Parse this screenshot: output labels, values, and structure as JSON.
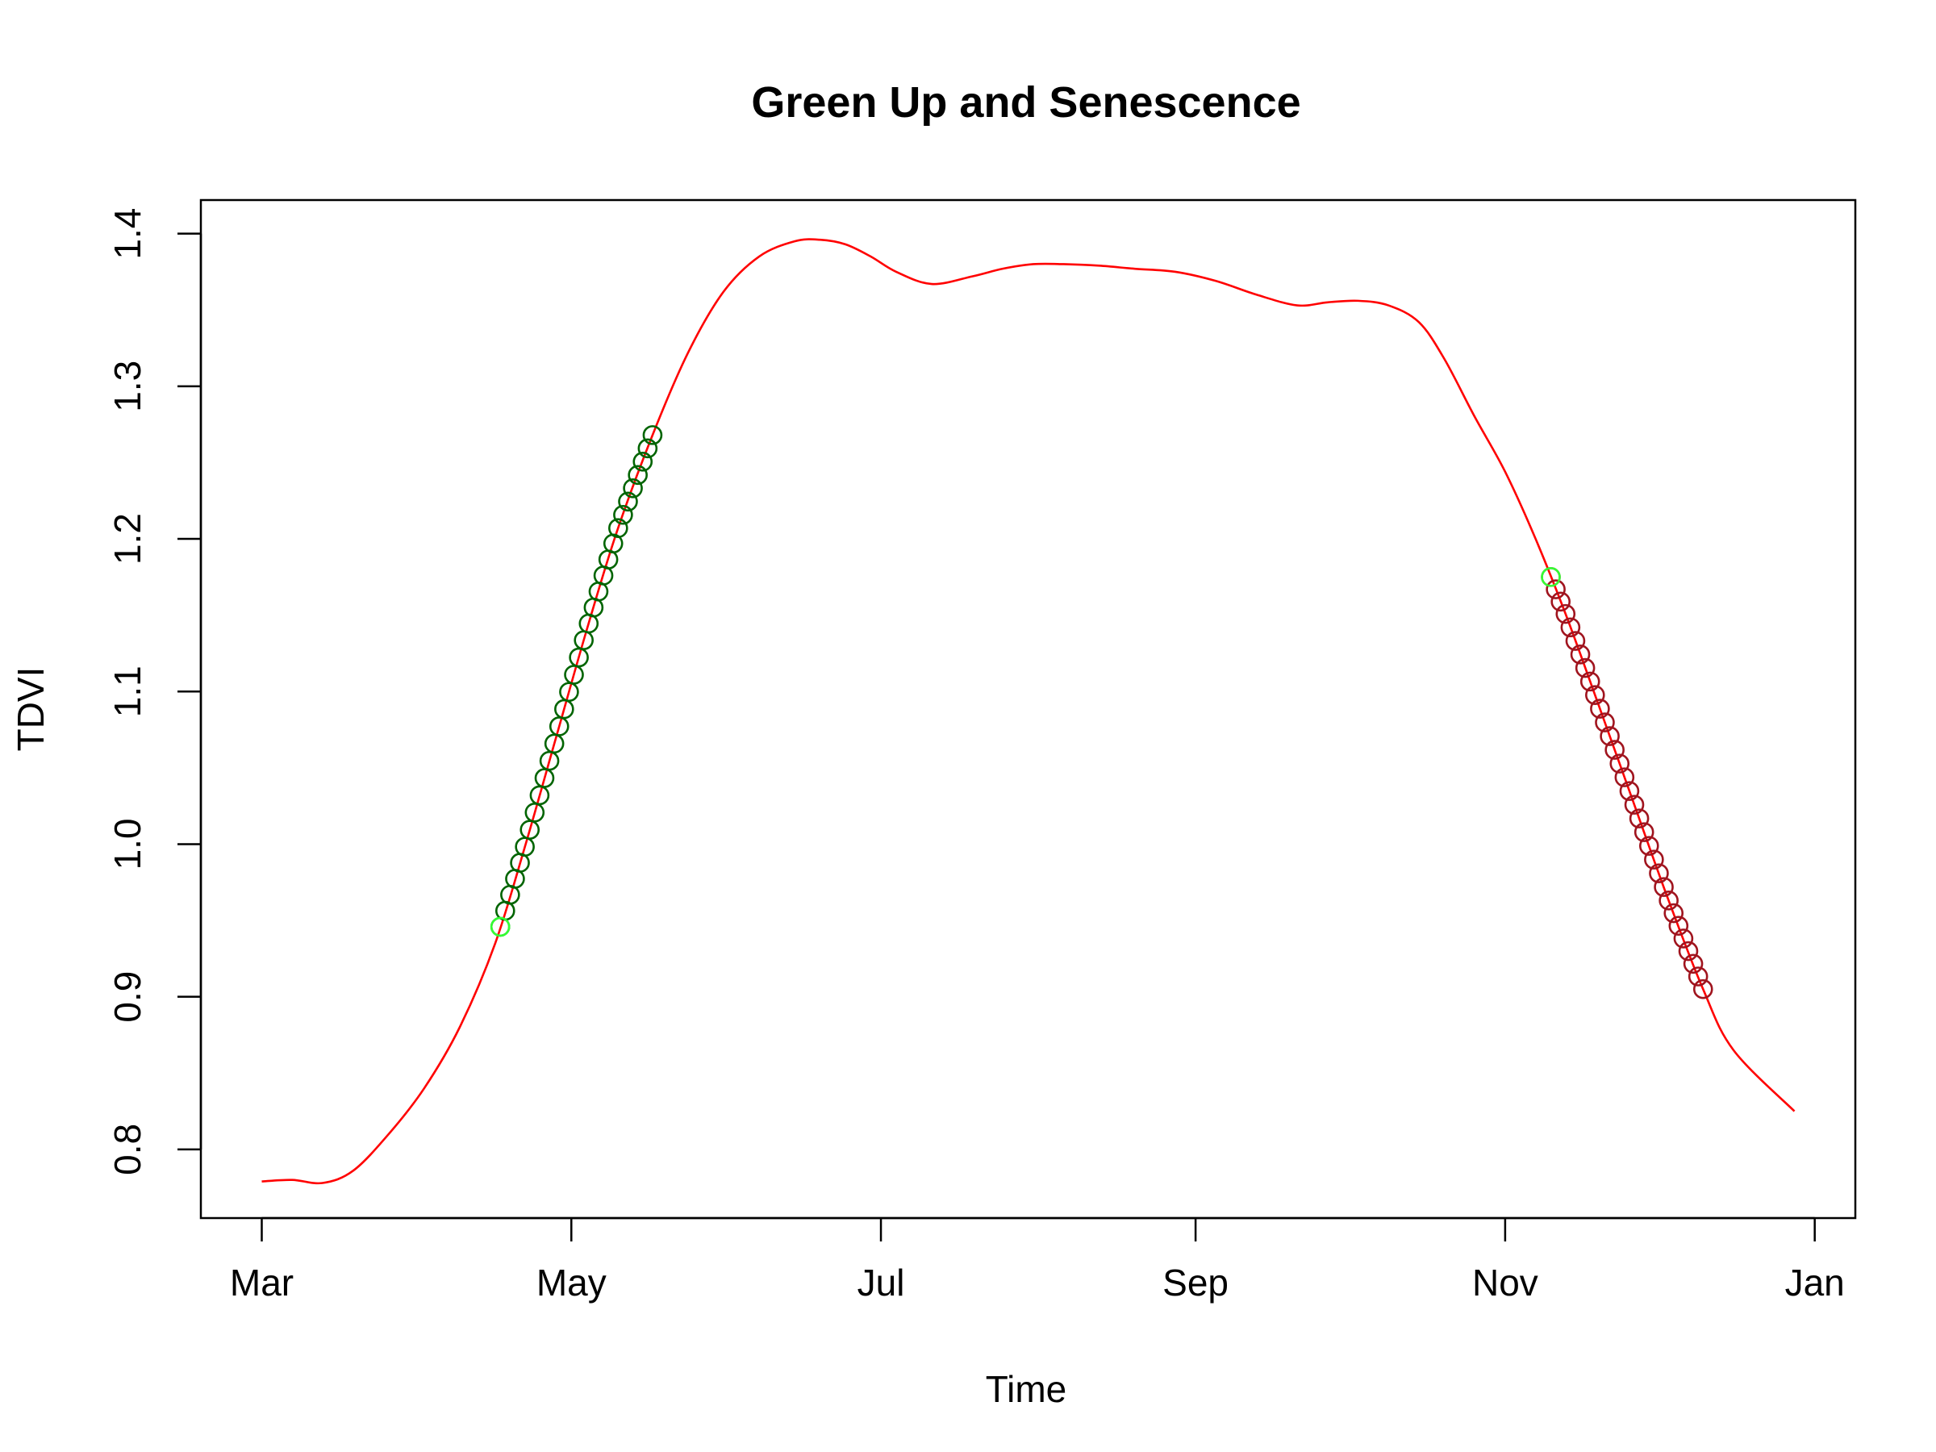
{
  "chart_data": {
    "type": "line",
    "title": "Green Up and Senescence",
    "xlabel": "Time",
    "ylabel": "TDVI",
    "x_ticks": [
      {
        "label": "Mar",
        "day": 0
      },
      {
        "label": "May",
        "day": 61
      },
      {
        "label": "Jul",
        "day": 122
      },
      {
        "label": "Sep",
        "day": 184
      },
      {
        "label": "Nov",
        "day": 245
      },
      {
        "label": "Jan",
        "day": 306
      }
    ],
    "xlim_days": [
      -12,
      314
    ],
    "y_ticks": [
      0.8,
      0.9,
      1.0,
      1.1,
      1.2,
      1.3,
      1.4
    ],
    "ylim": [
      0.755,
      1.422
    ],
    "grid": false,
    "colors": {
      "curve": "#ff0000",
      "greenup_marker": "#006400",
      "senescence_marker": "#a0141e",
      "start_marker": "#33ff33"
    },
    "curve": {
      "name": "",
      "x_days": [
        0,
        6,
        12,
        18,
        25,
        32,
        39,
        46,
        52,
        58,
        64,
        70,
        77,
        84,
        91,
        98,
        105,
        110,
        115,
        120,
        125,
        132,
        140,
        146,
        152,
        158,
        165,
        172,
        180,
        188,
        196,
        204,
        210,
        216,
        222,
        228,
        233,
        239,
        245,
        251,
        257,
        263,
        270,
        277,
        284,
        290,
        302
      ],
      "y_values": [
        0.779,
        0.78,
        0.778,
        0.786,
        0.81,
        0.84,
        0.88,
        0.935,
        1.0,
        1.07,
        1.14,
        1.205,
        1.268,
        1.322,
        1.362,
        1.385,
        1.395,
        1.396,
        1.393,
        1.385,
        1.375,
        1.367,
        1.372,
        1.377,
        1.38,
        1.38,
        1.379,
        1.377,
        1.375,
        1.369,
        1.36,
        1.353,
        1.355,
        1.356,
        1.353,
        1.342,
        1.318,
        1.28,
        1.244,
        1.2,
        1.15,
        1.095,
        1.03,
        0.965,
        0.905,
        0.865,
        0.825
      ]
    },
    "greenup": {
      "x_start": 47,
      "x_end": 77,
      "count": 32
    },
    "senescence": {
      "x_start": 254,
      "x_end": 284,
      "count": 32
    }
  }
}
